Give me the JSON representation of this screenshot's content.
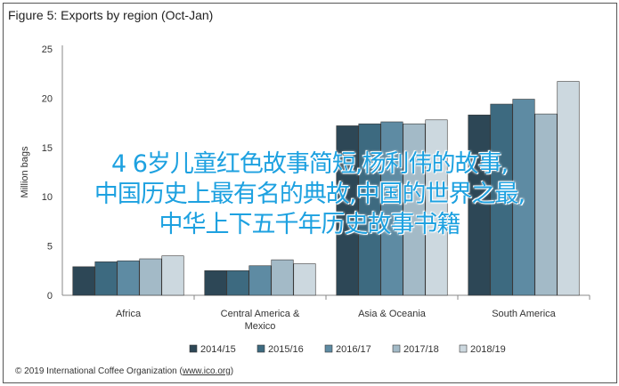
{
  "chart_data": {
    "type": "bar",
    "title": "Figure 5: Exports by region (Oct-Jan)",
    "ylabel": "Million bags",
    "xlabel": "",
    "ylim": [
      0,
      25
    ],
    "yticks": [
      0,
      5,
      10,
      15,
      20,
      25
    ],
    "categories": [
      "Africa",
      "Central America & Mexico",
      "Asia & Oceania",
      "South America"
    ],
    "category_lines": [
      [
        "Africa"
      ],
      [
        "Central America &",
        "Mexico"
      ],
      [
        "Asia & Oceania"
      ],
      [
        "South America"
      ]
    ],
    "series": [
      {
        "name": "2014/15",
        "color": "#2d4756",
        "values": [
          2.9,
          2.5,
          17.2,
          18.3
        ]
      },
      {
        "name": "2015/16",
        "color": "#3d6a80",
        "values": [
          3.4,
          2.5,
          17.4,
          19.4
        ]
      },
      {
        "name": "2016/17",
        "color": "#5e8ba3",
        "values": [
          3.5,
          3.0,
          17.6,
          19.9
        ]
      },
      {
        "name": "2017/18",
        "color": "#a3bac7",
        "values": [
          3.7,
          3.6,
          17.4,
          18.4
        ]
      },
      {
        "name": "2018/19",
        "color": "#ccd8df",
        "values": [
          4.0,
          3.2,
          17.8,
          21.7
        ]
      }
    ],
    "legend_position": "bottom",
    "grid": false
  },
  "footer": {
    "text": "© 2019 International Coffee Organization (",
    "link": "www.ico.org",
    "close": ")"
  },
  "overlay": {
    "line1": "4 6岁儿童红色故事简短,杨利伟的故事,",
    "line2": "中国历史上最有名的典故,中国的世界之最,",
    "line3": "中华上下五千年历史故事书籍",
    "color": "#1da1e0"
  }
}
